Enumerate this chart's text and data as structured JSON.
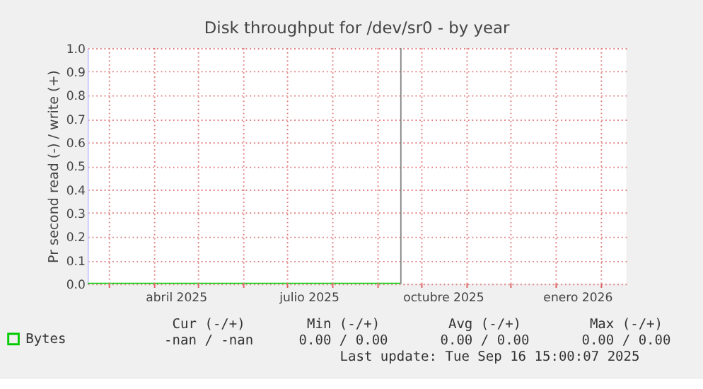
{
  "chart_data": {
    "type": "line",
    "title": "Disk throughput for /dev/sr0 - by year",
    "ylabel": "Pr second read (-) / write (+)",
    "x": [
      "2025-02-14",
      "2025-04-01",
      "2025-06-01",
      "2025-08-01",
      "2025-09-16T15:00"
    ],
    "series": [
      {
        "name": "Bytes",
        "color": "#00cc00",
        "values": [
          0,
          0,
          0,
          0,
          0
        ]
      }
    ],
    "xlim": [
      "2025-02-14",
      "2026-02-18"
    ],
    "xticks": [
      {
        "value": "2025-03-01",
        "label": null
      },
      {
        "value": "2025-04-01",
        "label": null
      },
      {
        "value": "2025-05-01",
        "label": null
      },
      {
        "value": "2025-06-01",
        "label": null
      },
      {
        "value": "2025-07-01",
        "label": null
      },
      {
        "value": "2025-08-01",
        "label": null
      },
      {
        "value": "2025-09-01",
        "label": null
      },
      {
        "value": "2025-10-01",
        "label": null
      },
      {
        "value": "2025-11-01",
        "label": null
      },
      {
        "value": "2025-12-01",
        "label": null
      },
      {
        "value": "2026-01-01",
        "label": null
      },
      {
        "value": "2026-02-01",
        "label": null
      },
      {
        "value": "2025-04-16",
        "label": "abril 2025"
      },
      {
        "value": "2025-07-16",
        "label": "julio 2025"
      },
      {
        "value": "2025-10-16",
        "label": "octubre 2025"
      },
      {
        "value": "2026-01-16",
        "label": "enero 2026"
      }
    ],
    "ylim": [
      0,
      1
    ],
    "yticks": [
      {
        "value": 0,
        "label": "0.0"
      },
      {
        "value": 0.1,
        "label": "0.1"
      },
      {
        "value": 0.2,
        "label": "0.2"
      },
      {
        "value": 0.3,
        "label": "0.3"
      },
      {
        "value": 0.4,
        "label": "0.4"
      },
      {
        "value": 0.5,
        "label": "0.5"
      },
      {
        "value": 0.6,
        "label": "0.6"
      },
      {
        "value": 0.7,
        "label": "0.7"
      },
      {
        "value": 0.8,
        "label": "0.8"
      },
      {
        "value": 0.9,
        "label": "0.9"
      },
      {
        "value": 1,
        "label": "1.0"
      }
    ],
    "ref_lines": [
      {
        "axis": "x",
        "value": "2025-09-16T15:00",
        "color": "#888888"
      }
    ],
    "grid": true,
    "legend": "bottom",
    "annotations": [
      "Cur (-/+)",
      "Min (-/+)",
      "Avg (-/+)",
      "Max (-/+)",
      "-nan /  -nan",
      "0.00 /  0.00",
      "0.00 /  0.00",
      "0.00 /  0.00",
      "Last update: Tue Sep 16 15:00:07 2025"
    ]
  }
}
